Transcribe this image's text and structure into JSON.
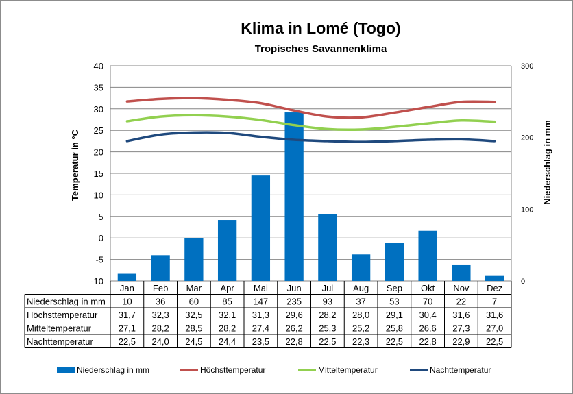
{
  "chart_data": {
    "type": "bar",
    "title": "Klima in Lomé (Togo)",
    "subtitle": "Tropisches Savannenklima",
    "ylabel_left": "Temperatur in °C",
    "ylabel_right": "Niederschlag in mm",
    "ylim_left": [
      -10,
      40
    ],
    "yticks_left": [
      "40",
      "35",
      "30",
      "25",
      "20",
      "15",
      "10",
      "5",
      "0",
      "-5",
      "-10"
    ],
    "ylim_right": [
      0,
      300
    ],
    "yticks_right": [
      "300",
      "200",
      "100",
      "0"
    ],
    "grid": true,
    "legend_position": "bottom",
    "categories": [
      "Jan",
      "Feb",
      "Mar",
      "Apr",
      "Mai",
      "Jun",
      "Jul",
      "Aug",
      "Sep",
      "Okt",
      "Nov",
      "Dez"
    ],
    "series": [
      {
        "name": "Niederschlag in mm",
        "kind": "bar",
        "axis": "right",
        "color": "#0070C0",
        "values": [
          10,
          36,
          60,
          85,
          147,
          235,
          93,
          37,
          53,
          70,
          22,
          7
        ],
        "labels": [
          "10",
          "36",
          "60",
          "85",
          "147",
          "235",
          "93",
          "37",
          "53",
          "70",
          "22",
          "7"
        ]
      },
      {
        "name": "Höchsttemperatur",
        "kind": "line",
        "axis": "left",
        "color": "#C0504D",
        "values": [
          31.7,
          32.3,
          32.5,
          32.1,
          31.3,
          29.6,
          28.2,
          28.0,
          29.1,
          30.4,
          31.6,
          31.6
        ],
        "labels": [
          "31,7",
          "32,3",
          "32,5",
          "32,1",
          "31,3",
          "29,6",
          "28,2",
          "28,0",
          "29,1",
          "30,4",
          "31,6",
          "31,6"
        ]
      },
      {
        "name": "Mitteltemperatur",
        "kind": "line",
        "axis": "left",
        "color": "#92D050",
        "values": [
          27.1,
          28.2,
          28.5,
          28.2,
          27.4,
          26.2,
          25.3,
          25.2,
          25.8,
          26.6,
          27.3,
          27.0
        ],
        "labels": [
          "27,1",
          "28,2",
          "28,5",
          "28,2",
          "27,4",
          "26,2",
          "25,3",
          "25,2",
          "25,8",
          "26,6",
          "27,3",
          "27,0"
        ]
      },
      {
        "name": "Nachttemperatur",
        "kind": "line",
        "axis": "left",
        "color": "#1F497D",
        "values": [
          22.5,
          24.0,
          24.5,
          24.4,
          23.5,
          22.8,
          22.5,
          22.3,
          22.5,
          22.8,
          22.9,
          22.5
        ],
        "labels": [
          "22,5",
          "24,0",
          "24,5",
          "24,4",
          "23,5",
          "22,8",
          "22,5",
          "22,3",
          "22,5",
          "22,8",
          "22,9",
          "22,5"
        ]
      }
    ]
  }
}
